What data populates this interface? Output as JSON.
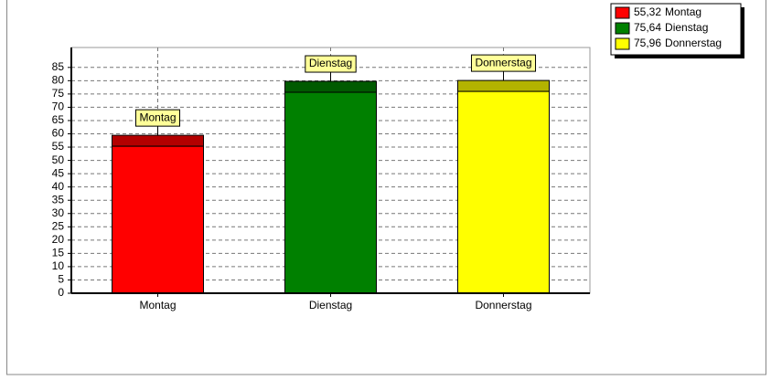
{
  "chart_data": {
    "type": "bar",
    "categories": [
      "Montag",
      "Dienstag",
      "Donnerstag"
    ],
    "values": [
      55.32,
      75.64,
      75.96
    ],
    "value_labels": [
      "55,32",
      "75,64",
      "75,96"
    ],
    "colors": [
      "#ff0000",
      "#008000",
      "#ffff00"
    ],
    "ylim": [
      0,
      92.5
    ],
    "yticks": [
      0,
      5,
      10,
      15,
      20,
      25,
      30,
      35,
      40,
      45,
      50,
      55,
      60,
      65,
      70,
      75,
      80,
      85
    ],
    "grid": true
  }
}
